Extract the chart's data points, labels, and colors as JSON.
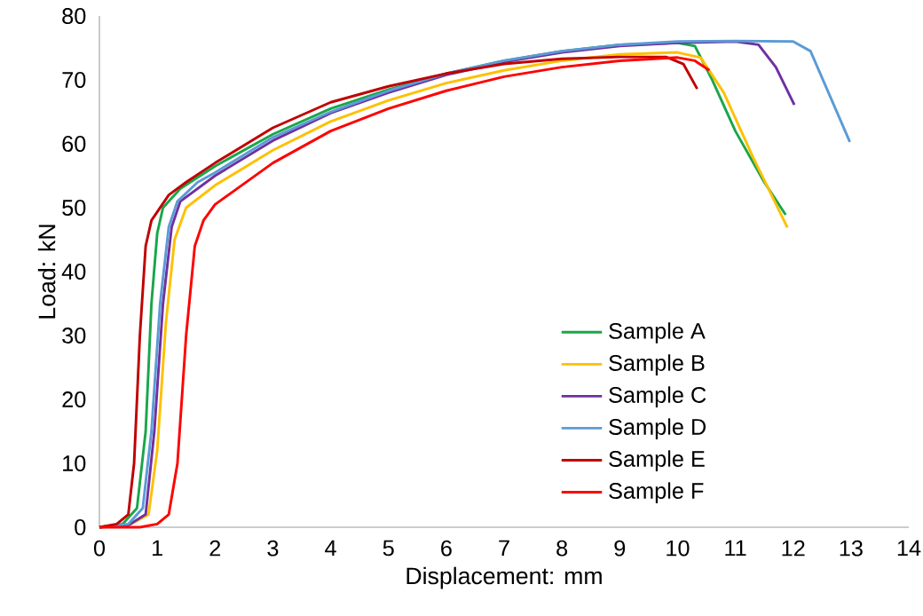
{
  "chart_data": {
    "type": "line",
    "xlabel": "Displacement: mm",
    "ylabel": "Load: kN",
    "xlim": [
      0,
      14
    ],
    "ylim": [
      0,
      80
    ],
    "xticks": [
      0,
      1,
      2,
      3,
      4,
      5,
      6,
      7,
      8,
      9,
      10,
      11,
      12,
      13,
      14
    ],
    "yticks": [
      0,
      10,
      20,
      30,
      40,
      50,
      60,
      70,
      80
    ],
    "grid": false,
    "legend": "right",
    "marker": "none",
    "line_style": "solid",
    "series": [
      {
        "name": "Sample A",
        "color": "#1aa64a",
        "x": [
          0,
          0.4,
          0.65,
          0.8,
          0.9,
          1.0,
          1.1,
          1.4,
          2,
          3,
          4,
          5,
          6,
          7,
          8,
          9,
          10,
          10.3,
          10.6,
          11,
          11.5,
          11.87
        ],
        "values": [
          0,
          0.5,
          3,
          15,
          35,
          46,
          50,
          53,
          56.5,
          61.5,
          65.5,
          68.5,
          71,
          73,
          74.5,
          75.5,
          75.8,
          75.3,
          70,
          62,
          54,
          48.9
        ]
      },
      {
        "name": "Sample B",
        "color": "#ffc000",
        "x": [
          0,
          0.5,
          0.85,
          1.0,
          1.15,
          1.3,
          1.5,
          2,
          3,
          4,
          5,
          6,
          7,
          8,
          9,
          10,
          10.4,
          10.8,
          11.3,
          11.9
        ],
        "values": [
          0,
          0.3,
          2,
          12,
          32,
          45,
          50,
          53.5,
          59,
          63.5,
          66.8,
          69.5,
          71.5,
          73,
          74,
          74.3,
          73.5,
          68,
          58,
          46.9
        ]
      },
      {
        "name": "Sample C",
        "color": "#7030a0",
        "x": [
          0,
          0.5,
          0.8,
          0.95,
          1.1,
          1.25,
          1.4,
          2,
          3,
          4,
          5,
          6,
          7,
          8,
          9,
          10,
          11,
          11.4,
          11.7,
          12.02
        ],
        "values": [
          0,
          0.3,
          2,
          15,
          35,
          47,
          51,
          55,
          60.5,
          64.8,
          68,
          70.8,
          72.8,
          74.3,
          75.3,
          75.8,
          76,
          75.5,
          72,
          66.1
        ]
      },
      {
        "name": "Sample D",
        "color": "#5b9bd5",
        "x": [
          0,
          0.5,
          0.75,
          0.9,
          1.05,
          1.2,
          1.35,
          1.7,
          2,
          3,
          4,
          5,
          6,
          7,
          8,
          9,
          10,
          11,
          12,
          12.3,
          12.98
        ],
        "values": [
          0,
          0.5,
          3,
          15,
          35,
          47,
          51,
          54,
          55.5,
          61,
          65,
          68.3,
          71,
          73,
          74.5,
          75.5,
          76,
          76.1,
          76,
          74.5,
          60.3
        ]
      },
      {
        "name": "Sample E",
        "color": "#c00000",
        "x": [
          0,
          0.3,
          0.5,
          0.6,
          0.7,
          0.8,
          0.9,
          1.2,
          1.5,
          2,
          3,
          4,
          5,
          6,
          7,
          8,
          9,
          9.8,
          10.1,
          10.34
        ],
        "values": [
          0,
          0.5,
          2,
          10,
          30,
          44,
          48,
          52,
          54,
          57,
          62.5,
          66.5,
          69,
          71,
          72.5,
          73.3,
          73.6,
          73.6,
          72.5,
          68.6
        ]
      },
      {
        "name": "Sample F",
        "color": "#ff0000",
        "x": [
          0,
          0.7,
          1.0,
          1.2,
          1.35,
          1.5,
          1.65,
          1.8,
          2,
          3,
          4,
          5,
          6,
          7,
          8,
          9,
          10,
          10.3,
          10.55
        ],
        "values": [
          0,
          0,
          0.5,
          2,
          10,
          30,
          44,
          48,
          50.5,
          57,
          62,
          65.5,
          68.3,
          70.5,
          72,
          73,
          73.5,
          73,
          71.5
        ]
      }
    ]
  }
}
